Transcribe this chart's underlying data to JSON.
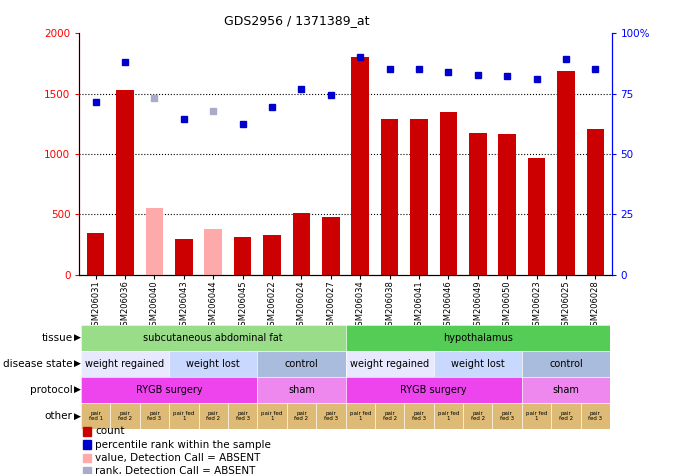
{
  "title": "GDS2956 / 1371389_at",
  "samples": [
    "GSM206031",
    "GSM206036",
    "GSM206040",
    "GSM206043",
    "GSM206044",
    "GSM206045",
    "GSM206022",
    "GSM206024",
    "GSM206027",
    "GSM206034",
    "GSM206038",
    "GSM206041",
    "GSM206046",
    "GSM206049",
    "GSM206050",
    "GSM206023",
    "GSM206025",
    "GSM206028"
  ],
  "count_values": [
    350,
    1530,
    550,
    300,
    380,
    310,
    330,
    510,
    480,
    1800,
    1290,
    1290,
    1350,
    1175,
    1165,
    970,
    1690,
    1210
  ],
  "count_absent": [
    false,
    false,
    true,
    false,
    true,
    false,
    false,
    false,
    false,
    false,
    false,
    false,
    false,
    false,
    false,
    false,
    false,
    false
  ],
  "rank_values": [
    1430,
    1760,
    1460,
    1290,
    1360,
    1250,
    1390,
    1540,
    1490,
    1800,
    1700,
    1700,
    1680,
    1650,
    1645,
    1620,
    1790,
    1700
  ],
  "rank_absent": [
    false,
    false,
    true,
    false,
    true,
    false,
    false,
    false,
    false,
    false,
    false,
    false,
    false,
    false,
    false,
    false,
    false,
    false
  ],
  "ylim_left": [
    0,
    2000
  ],
  "ylim_right": [
    0,
    100
  ],
  "yticks_left": [
    0,
    500,
    1000,
    1500,
    2000
  ],
  "yticks_right": [
    0,
    25,
    50,
    75,
    100
  ],
  "bar_color_present": "#cc0000",
  "bar_color_absent": "#ffaaaa",
  "rank_color_present": "#0000cc",
  "rank_color_absent": "#aaaacc",
  "tissue_segments": [
    {
      "text": "subcutaneous abdominal fat",
      "start": 0,
      "end": 9,
      "color": "#99dd88"
    },
    {
      "text": "hypothalamus",
      "start": 9,
      "end": 18,
      "color": "#55cc55"
    }
  ],
  "disease_segments": [
    {
      "text": "weight regained",
      "start": 0,
      "end": 3,
      "color": "#e8e8ff"
    },
    {
      "text": "weight lost",
      "start": 3,
      "end": 6,
      "color": "#c8d8ff"
    },
    {
      "text": "control",
      "start": 6,
      "end": 9,
      "color": "#aabcdd"
    },
    {
      "text": "weight regained",
      "start": 9,
      "end": 12,
      "color": "#e8e8ff"
    },
    {
      "text": "weight lost",
      "start": 12,
      "end": 15,
      "color": "#c8d8ff"
    },
    {
      "text": "control",
      "start": 15,
      "end": 18,
      "color": "#aabcdd"
    }
  ],
  "protocol_segments": [
    {
      "text": "RYGB surgery",
      "start": 0,
      "end": 6,
      "color": "#ee44ee"
    },
    {
      "text": "sham",
      "start": 6,
      "end": 9,
      "color": "#ee88ee"
    },
    {
      "text": "RYGB surgery",
      "start": 9,
      "end": 15,
      "color": "#ee44ee"
    },
    {
      "text": "sham",
      "start": 15,
      "end": 18,
      "color": "#ee88ee"
    }
  ],
  "other_labels": [
    "pair\nfed 1",
    "pair\nfed 2",
    "pair\nfed 3",
    "pair fed\n1",
    "pair\nfed 2",
    "pair\nfed 3",
    "pair fed\n1",
    "pair\nfed 2",
    "pair\nfed 3",
    "pair fed\n1",
    "pair\nfed 2",
    "pair\nfed 3",
    "pair fed\n1",
    "pair\nfed 2",
    "pair\nfed 3",
    "pair fed\n1",
    "pair\nfed 2",
    "pair\nfed 3"
  ],
  "other_color": "#ddbb77",
  "legend_items": [
    {
      "color": "#cc0000",
      "label": "count"
    },
    {
      "color": "#0000cc",
      "label": "percentile rank within the sample"
    },
    {
      "color": "#ffaaaa",
      "label": "value, Detection Call = ABSENT"
    },
    {
      "color": "#aaaacc",
      "label": "rank, Detection Call = ABSENT"
    }
  ],
  "row_labels": [
    "tissue",
    "disease state",
    "protocol",
    "other"
  ]
}
